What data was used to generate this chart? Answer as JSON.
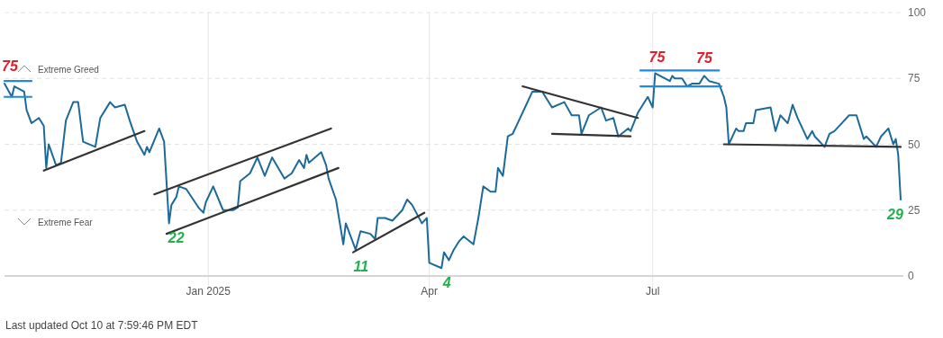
{
  "chart_data": {
    "type": "line",
    "xlim": [
      "2024-10-10",
      "2025-10-10"
    ],
    "xticks": [
      {
        "value": "2025-01-01",
        "label": "Jan 2025"
      },
      {
        "value": "2025-04-01",
        "label": "Apr"
      },
      {
        "value": "2025-07-01",
        "label": "Jul"
      }
    ],
    "ylim": [
      0,
      100
    ],
    "yticks": [
      0,
      25,
      50,
      75,
      100
    ],
    "grid": true,
    "series": [
      {
        "color": "#1c6a9a",
        "x": [
          "2024-10-10",
          "2024-10-13",
          "2024-10-14",
          "2024-10-18",
          "2024-10-19",
          "2024-10-21",
          "2024-10-24",
          "2024-10-26",
          "2024-10-27",
          "2024-10-28",
          "2024-10-31",
          "2024-11-02",
          "2024-11-04",
          "2024-11-07",
          "2024-11-09",
          "2024-11-11",
          "2024-11-16",
          "2024-11-18",
          "2024-11-22",
          "2024-11-24",
          "2024-11-28",
          "2024-11-30",
          "2024-12-03",
          "2024-12-06",
          "2024-12-07",
          "2024-12-08",
          "2024-12-12",
          "2024-12-14",
          "2024-12-16",
          "2024-12-17",
          "2024-12-19",
          "2024-12-20",
          "2024-12-23",
          "2024-12-28",
          "2024-12-30",
          "2024-12-31",
          "2025-01-03",
          "2025-01-07",
          "2025-01-11",
          "2025-01-13",
          "2025-01-14",
          "2025-01-18",
          "2025-01-21",
          "2025-01-24",
          "2025-01-27",
          "2025-02-01",
          "2025-02-04",
          "2025-02-07",
          "2025-02-09",
          "2025-02-10",
          "2025-02-11",
          "2025-02-16",
          "2025-02-18",
          "2025-02-19",
          "2025-02-22",
          "2025-02-25",
          "2025-02-26",
          "2025-03-02",
          "2025-03-04",
          "2025-03-08",
          "2025-03-10",
          "2025-03-11",
          "2025-03-14",
          "2025-03-17",
          "2025-03-21",
          "2025-03-23",
          "2025-03-25",
          "2025-03-29",
          "2025-03-31",
          "2025-04-01",
          "2025-04-06",
          "2025-04-07",
          "2025-04-09",
          "2025-04-11",
          "2025-04-13",
          "2025-04-15",
          "2025-04-19",
          "2025-04-21",
          "2025-04-23",
          "2025-04-26",
          "2025-04-28",
          "2025-04-29",
          "2025-05-01",
          "2025-05-03",
          "2025-05-05",
          "2025-05-07",
          "2025-05-10",
          "2025-05-13",
          "2025-05-15",
          "2025-05-17",
          "2025-05-19",
          "2025-05-21",
          "2025-05-26",
          "2025-05-29",
          "2025-06-01",
          "2025-06-02",
          "2025-06-05",
          "2025-06-10",
          "2025-06-12",
          "2025-06-15",
          "2025-06-17",
          "2025-06-21",
          "2025-06-22",
          "2025-06-25",
          "2025-06-29",
          "2025-07-01",
          "2025-07-02",
          "2025-07-04",
          "2025-07-08",
          "2025-07-09",
          "2025-07-10",
          "2025-07-13",
          "2025-07-15",
          "2025-07-17",
          "2025-07-20",
          "2025-07-22",
          "2025-07-24",
          "2025-07-28",
          "2025-07-30",
          "2025-07-31",
          "2025-08-01",
          "2025-08-04",
          "2025-08-05",
          "2025-08-07",
          "2025-08-08",
          "2025-08-11",
          "2025-08-12",
          "2025-08-18",
          "2025-08-20",
          "2025-08-22",
          "2025-08-25",
          "2025-08-27",
          "2025-08-29",
          "2025-09-02",
          "2025-09-04",
          "2025-09-05",
          "2025-09-09",
          "2025-09-11",
          "2025-09-13",
          "2025-09-16",
          "2025-09-19",
          "2025-09-22",
          "2025-09-25",
          "2025-09-26",
          "2025-09-30",
          "2025-10-02",
          "2025-10-05",
          "2025-10-07",
          "2025-10-08",
          "2025-10-09",
          "2025-10-10"
        ],
        "values": [
          73,
          68,
          72,
          70,
          63,
          58,
          60,
          57,
          41,
          50,
          42,
          43,
          59,
          66,
          66,
          51,
          49,
          60,
          66,
          64,
          65,
          59,
          51,
          46,
          49,
          47,
          56,
          51,
          20,
          27,
          30,
          34,
          33,
          26,
          24,
          28,
          34,
          25,
          25,
          26,
          36,
          39,
          45,
          38,
          45,
          37,
          39,
          44,
          41,
          46,
          43,
          47,
          42,
          37,
          29,
          12,
          20,
          10,
          17,
          16,
          14,
          22,
          22,
          21,
          25,
          29,
          27,
          20,
          22,
          5,
          3,
          9,
          6,
          10,
          13,
          15,
          12,
          22,
          34,
          32,
          32,
          41,
          38,
          53,
          54,
          58,
          64,
          70,
          70,
          70,
          67,
          64,
          66,
          61,
          61,
          54,
          61,
          64,
          59,
          60,
          53,
          56,
          55,
          62,
          68,
          64,
          77,
          76,
          74,
          76,
          75,
          75,
          72,
          73,
          73,
          76,
          74,
          73,
          68,
          64,
          50,
          56,
          55,
          55,
          58,
          58,
          63,
          64,
          55,
          61,
          58,
          65,
          60,
          52,
          55,
          53,
          49,
          54,
          55,
          58,
          61,
          61,
          52,
          53,
          49,
          53,
          56,
          50,
          52,
          46,
          29
        ]
      },
      {
        "type": "line",
        "color": "#333333",
        "x": [
          "2024-10-26",
          "2024-12-06"
        ],
        "values": [
          40,
          55
        ]
      },
      {
        "type": "line",
        "color": "#333333",
        "x": [
          "2024-12-10",
          "2025-02-20"
        ],
        "values": [
          31,
          56
        ]
      },
      {
        "type": "line",
        "color": "#333333",
        "x": [
          "2024-12-15",
          "2025-02-23"
        ],
        "values": [
          16,
          41
        ]
      },
      {
        "type": "line",
        "color": "#333333",
        "x": [
          "2025-03-01",
          "2025-03-30"
        ],
        "values": [
          9,
          24
        ]
      },
      {
        "type": "line",
        "color": "#333333",
        "x": [
          "2025-05-09",
          "2025-06-25"
        ],
        "values": [
          72,
          60
        ]
      },
      {
        "type": "line",
        "color": "#333333",
        "x": [
          "2025-05-21",
          "2025-06-22"
        ],
        "values": [
          54,
          53
        ]
      },
      {
        "type": "line",
        "color": "#333333",
        "x": [
          "2025-07-30",
          "2025-10-10"
        ],
        "values": [
          50,
          49
        ]
      },
      {
        "type": "line",
        "color": "#1e88e5",
        "x": [
          "2024-10-10",
          "2024-10-21"
        ],
        "values": [
          74,
          74
        ]
      },
      {
        "type": "line",
        "color": "#1e88e5",
        "x": [
          "2024-10-10",
          "2024-10-21"
        ],
        "values": [
          68,
          68
        ]
      },
      {
        "type": "line",
        "color": "#1e88e5",
        "x": [
          "2025-06-26",
          "2025-07-28"
        ],
        "values": [
          78,
          78
        ]
      },
      {
        "type": "line",
        "color": "#1e88e5",
        "x": [
          "2025-06-26",
          "2025-07-29"
        ],
        "values": [
          72,
          72
        ]
      }
    ],
    "annotations": [
      "Extreme Greed",
      "Extreme Fear",
      "Last updated Oct 10 at 7:59:46 PM EDT",
      {
        "text": "75",
        "x": "2024-10-10",
        "y": 73
      },
      {
        "text": "22",
        "x": "2024-12-16",
        "y": 20
      },
      {
        "text": "11",
        "x": "2025-03-02",
        "y": 10
      },
      {
        "text": "4",
        "x": "2025-04-06",
        "y": 3
      },
      {
        "text": "75",
        "x": "2025-07-02",
        "y": 77
      },
      {
        "text": "75",
        "x": "2025-07-22",
        "y": 76
      },
      {
        "text": "29",
        "x": "2025-10-10",
        "y": 29
      }
    ]
  }
}
